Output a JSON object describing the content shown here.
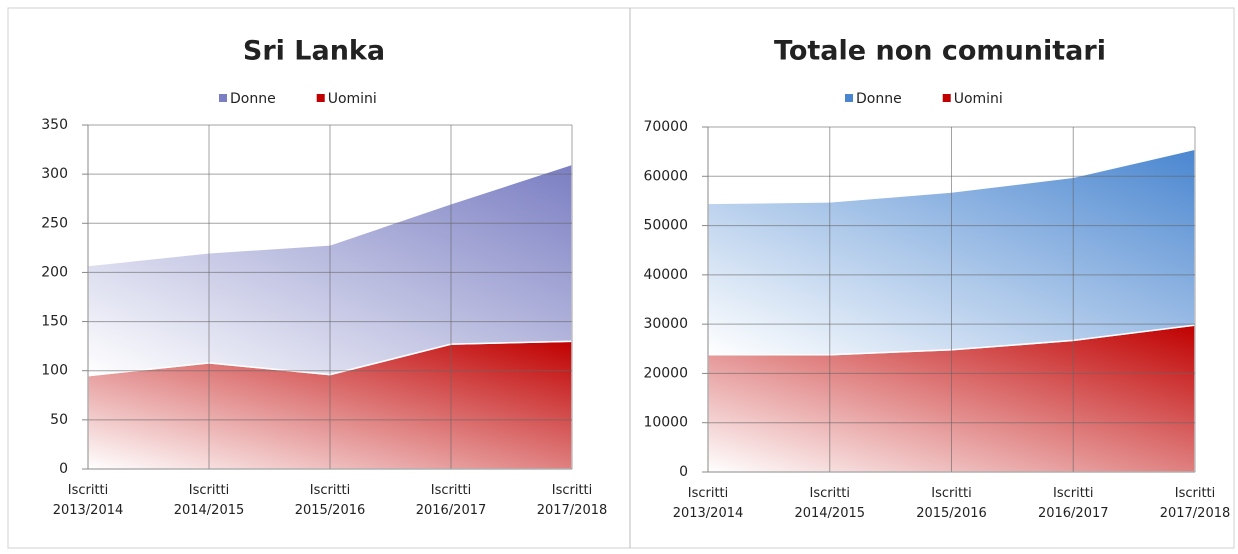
{
  "chart_data": [
    {
      "type": "area",
      "stacked": true,
      "title": "Sri Lanka",
      "categories": [
        "Iscritti 2013/2014",
        "Iscritti 2014/2015",
        "Iscritti 2015/2016",
        "Iscritti 2016/2017",
        "Iscritti 2017/2018"
      ],
      "series": [
        {
          "name": "Donne",
          "color": "#7a7ec2",
          "values": [
            112,
            112,
            132,
            143,
            180
          ]
        },
        {
          "name": "Uomini",
          "color": "#c00000",
          "values": [
            95,
            108,
            96,
            127,
            130
          ]
        }
      ],
      "ylim": [
        0,
        350
      ],
      "yticks": [
        0,
        50,
        100,
        150,
        200,
        250,
        300,
        350
      ],
      "grid": true,
      "legend": "top"
    },
    {
      "type": "area",
      "stacked": true,
      "title": "Totale non comunitari",
      "categories": [
        "Iscritti 2013/2014",
        "Iscritti 2014/2015",
        "Iscritti 2015/2016",
        "Iscritti 2016/2017",
        "Iscritti 2017/2018"
      ],
      "series": [
        {
          "name": "Donne",
          "color": "#4a86d0",
          "values": [
            30700,
            31000,
            32000,
            33100,
            35700
          ]
        },
        {
          "name": "Uomini",
          "color": "#c00000",
          "values": [
            23800,
            23800,
            24800,
            26700,
            29800
          ]
        }
      ],
      "ylim": [
        0,
        70000
      ],
      "yticks": [
        0,
        10000,
        20000,
        30000,
        40000,
        50000,
        60000,
        70000
      ],
      "grid": true,
      "legend": "top"
    }
  ]
}
